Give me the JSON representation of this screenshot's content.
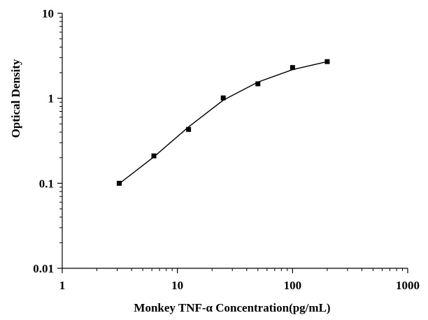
{
  "chart_data": {
    "type": "scatter",
    "title": "",
    "xlabel": "Monkey TNF-α Concentration(pg/mL)",
    "ylabel": "Optical Density",
    "x_scale": "log",
    "y_scale": "log",
    "xlim": [
      1,
      1000
    ],
    "ylim": [
      0.01,
      10
    ],
    "x_ticks": [
      1,
      10,
      100,
      1000
    ],
    "x_tick_labels": [
      "1",
      "10",
      "100",
      "1000"
    ],
    "y_ticks": [
      0.01,
      0.1,
      1,
      10
    ],
    "y_tick_labels": [
      "0.01",
      "0.1",
      "1",
      "10"
    ],
    "grid": false,
    "legend": "none",
    "marker": "square",
    "color": "#000000",
    "series": [
      {
        "x": [
          3.125,
          6.25,
          12.5,
          25,
          50,
          100,
          200
        ],
        "y": [
          0.1,
          0.21,
          0.43,
          1.01,
          1.48,
          2.3,
          2.7
        ]
      }
    ],
    "fit_curve": {
      "x": [
        3.125,
        6.25,
        12.5,
        25,
        50,
        100,
        200
      ],
      "y": [
        0.099,
        0.205,
        0.46,
        0.95,
        1.55,
        2.17,
        2.7
      ]
    }
  }
}
